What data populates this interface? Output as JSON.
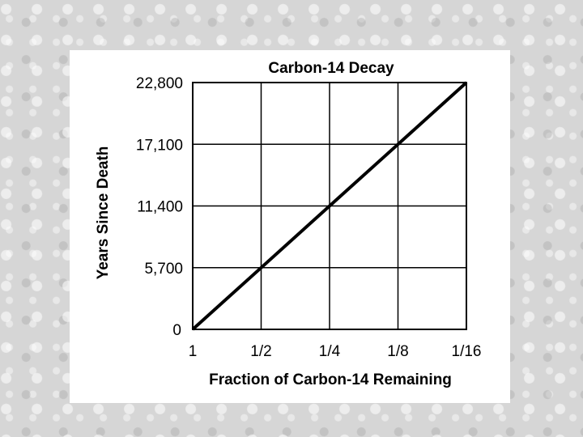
{
  "chart_data": {
    "type": "line",
    "title": "Carbon-14 Decay",
    "xlabel": "Fraction of Carbon-14 Remaining",
    "ylabel": "Years Since Death",
    "x_tick_labels": [
      "1",
      "1/2",
      "1/4",
      "1/8",
      "1/16"
    ],
    "y_tick_labels": [
      "0",
      "5,700",
      "11,400",
      "17,100",
      "22,800"
    ],
    "y_ticks": [
      0,
      5700,
      11400,
      17100,
      22800
    ],
    "x_fraction_remaining": [
      1,
      0.5,
      0.25,
      0.125,
      0.0625
    ],
    "ylim": [
      0,
      22800
    ],
    "grid": true,
    "series": [
      {
        "x": [
          1,
          0.5,
          0.25,
          0.125,
          0.0625
        ],
        "y": [
          0,
          5700,
          11400,
          17100,
          22800
        ]
      }
    ],
    "line_color": "#000000"
  }
}
